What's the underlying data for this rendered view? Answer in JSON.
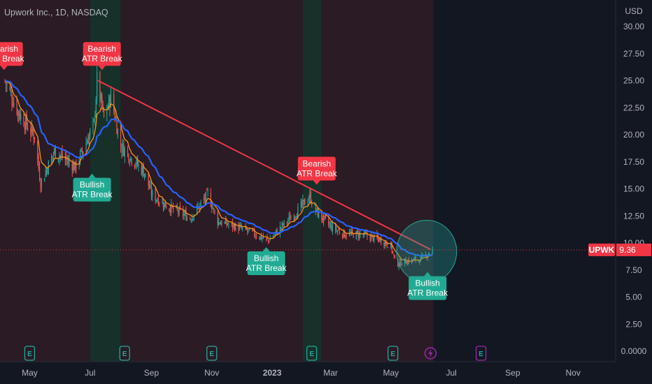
{
  "title": "Upwork Inc., 1D, NASDAQ",
  "currency": "USD",
  "colors": {
    "background": "#131722",
    "bearish_zone": "#2a1b24",
    "bullish_zone": "#17302a",
    "up_candle": "#26a69a",
    "down_candle": "#ef5350",
    "ema_slow": "#2962ff",
    "ema_fast": "#f7931a",
    "trendline": "#f23645",
    "circle": "#26a69a",
    "bearish_label": "#f23645",
    "bullish_label": "#22ab94",
    "price_tag": "#f23645"
  },
  "price_tag": {
    "symbol": "UPWK",
    "value": "9.36"
  },
  "earnings_marker": "E",
  "chart_data": {
    "type": "candlestick",
    "ylim": [
      0,
      31.5
    ],
    "y_ticks": [
      "0.0000",
      "2.50",
      "5.00",
      "7.50",
      "10.00",
      "12.50",
      "15.00",
      "17.50",
      "20.00",
      "22.50",
      "25.00",
      "27.50",
      "30.00"
    ],
    "x_ticks": [
      "May",
      "Jul",
      "Sep",
      "Nov",
      "2023",
      "Mar",
      "May",
      "Jul",
      "Sep",
      "Nov"
    ],
    "x_ticks_bold": [
      "2023"
    ],
    "price_key_points": [
      [
        "2022-04-06",
        25.0
      ],
      [
        "2022-04-20",
        22.0
      ],
      [
        "2022-05-06",
        19.8
      ],
      [
        "2022-05-12",
        15.5
      ],
      [
        "2022-05-26",
        18.5
      ],
      [
        "2022-06-16",
        17.0
      ],
      [
        "2022-06-28",
        19.5
      ],
      [
        "2022-07-05",
        21.0
      ],
      [
        "2022-07-08",
        25.0
      ],
      [
        "2022-07-15",
        21.5
      ],
      [
        "2022-07-22",
        23.5
      ],
      [
        "2022-08-01",
        19.0
      ],
      [
        "2022-08-15",
        17.5
      ],
      [
        "2022-08-25",
        16.5
      ],
      [
        "2022-09-01",
        14.5
      ],
      [
        "2022-09-15",
        13.5
      ],
      [
        "2022-09-30",
        12.8
      ],
      [
        "2022-10-10",
        12.3
      ],
      [
        "2022-10-20",
        13.5
      ],
      [
        "2022-10-28",
        14.5
      ],
      [
        "2022-11-07",
        12.0
      ],
      [
        "2022-11-25",
        11.5
      ],
      [
        "2022-12-10",
        11.0
      ],
      [
        "2022-12-28",
        10.2
      ],
      [
        "2023-01-10",
        11.5
      ],
      [
        "2023-01-25",
        12.8
      ],
      [
        "2023-02-08",
        14.3
      ],
      [
        "2023-02-15",
        12.8
      ],
      [
        "2023-03-01",
        11.5
      ],
      [
        "2023-03-15",
        10.8
      ],
      [
        "2023-04-01",
        10.8
      ],
      [
        "2023-04-20",
        10.3
      ],
      [
        "2023-05-01",
        9.7
      ],
      [
        "2023-05-06",
        8.0
      ],
      [
        "2023-05-15",
        8.3
      ],
      [
        "2023-05-31",
        8.5
      ],
      [
        "2023-06-12",
        9.36
      ]
    ],
    "zones": [
      {
        "type": "bearish",
        "start": "2022-04-01",
        "end": "2022-07-01"
      },
      {
        "type": "bullish",
        "start": "2022-07-01",
        "end": "2022-08-01"
      },
      {
        "type": "bearish",
        "start": "2022-08-01",
        "end": "2023-02-01"
      },
      {
        "type": "bullish",
        "start": "2023-02-01",
        "end": "2023-02-20"
      },
      {
        "type": "bearish",
        "start": "2023-02-20",
        "end": "2023-06-13"
      }
    ],
    "trendline": {
      "from": [
        "2022-07-09",
        25.0
      ],
      "to": [
        "2023-06-10",
        9.4
      ]
    },
    "highlight_circle": {
      "center": [
        "2023-06-06",
        9.2
      ]
    },
    "labels": [
      {
        "kind": "bearish",
        "lines": [
          "Bearish",
          "ATR Break"
        ],
        "date": "2022-04-05",
        "y": 25.6
      },
      {
        "kind": "bearish",
        "lines": [
          "Bearish",
          "ATR Break"
        ],
        "date": "2022-07-13",
        "y": 25.6
      },
      {
        "kind": "bullish",
        "lines": [
          "Bullish",
          "ATR Break"
        ],
        "date": "2022-07-03",
        "y": 16.8
      },
      {
        "kind": "bearish",
        "lines": [
          "Bearish",
          "ATR Break"
        ],
        "date": "2023-02-15",
        "y": 15.0
      },
      {
        "kind": "bullish",
        "lines": [
          "Bullish",
          "ATR Break"
        ],
        "date": "2022-12-26",
        "y": 10.0
      },
      {
        "kind": "bullish",
        "lines": [
          "Bullish",
          "ATR Break"
        ],
        "date": "2023-06-07",
        "y": 7.7
      }
    ],
    "earnings": [
      {
        "date": "2022-05-01",
        "future": false
      },
      {
        "date": "2022-08-05",
        "future": false
      },
      {
        "date": "2022-11-01",
        "future": false
      },
      {
        "date": "2023-02-10",
        "future": false
      },
      {
        "date": "2023-05-03",
        "future": false
      },
      {
        "date": "2023-06-10",
        "dividend": true
      },
      {
        "date": "2023-07-31",
        "future": true
      }
    ]
  }
}
